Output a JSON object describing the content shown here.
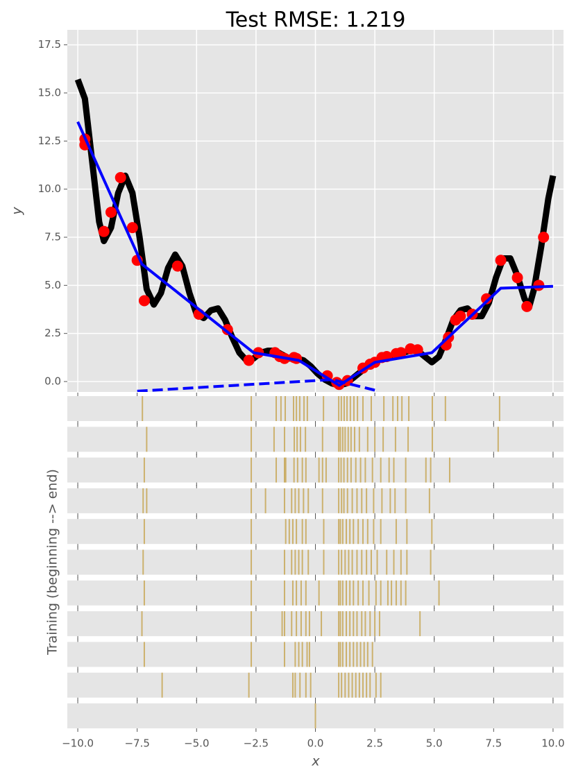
{
  "chart_data": [
    {
      "type": "line",
      "title": "Test RMSE: 1.219",
      "y_label": "y",
      "ylim": [
        -0.54,
        18.28
      ],
      "yticks": [
        {
          "value": 0,
          "label": "0.0"
        },
        2.5,
        {
          "value": 5,
          "label": "5.0"
        },
        7.5,
        {
          "value": 10,
          "label": "10.0"
        },
        12.5,
        {
          "value": 15,
          "label": "15.0"
        },
        17.5
      ],
      "grid": true,
      "series": [
        {
          "color": "#000000",
          "linestyle": "solid",
          "linewidth": 9,
          "x": [
            -10,
            -9.7,
            -9.4,
            -9.1,
            -8.9,
            -8.6,
            -8.3,
            -8.0,
            -7.7,
            -7.4,
            -7.1,
            -6.8,
            -6.5,
            -6.2,
            -5.9,
            -5.6,
            -5.3,
            -5.0,
            -4.7,
            -4.4,
            -4.1,
            -3.8,
            -3.5,
            -3.2,
            -2.9,
            -2.6,
            -2.3,
            -2.0,
            -1.7,
            -1.4,
            -1.1,
            -0.8,
            -0.5,
            -0.2,
            0.1,
            0.4,
            0.7,
            1.0,
            1.3,
            1.6,
            1.9,
            2.2,
            2.5,
            2.8,
            3.1,
            3.4,
            3.7,
            4.0,
            4.3,
            4.6,
            4.9,
            5.2,
            5.5,
            5.8,
            6.1,
            6.4,
            6.7,
            7.0,
            7.3,
            7.6,
            7.9,
            8.2,
            8.5,
            8.8,
            9.0,
            9.2,
            9.5,
            9.8,
            10.0
          ],
          "values": [
            15.7,
            14.7,
            11.5,
            8.3,
            7.3,
            8.0,
            9.8,
            10.7,
            9.8,
            7.5,
            4.8,
            4.0,
            4.6,
            5.9,
            6.6,
            6.0,
            4.6,
            3.5,
            3.3,
            3.7,
            3.8,
            3.2,
            2.3,
            1.5,
            1.1,
            1.2,
            1.5,
            1.6,
            1.6,
            1.4,
            1.2,
            1.2,
            1.1,
            0.8,
            0.4,
            0.1,
            -0.1,
            -0.2,
            -0.1,
            0.2,
            0.5,
            0.8,
            1.0,
            1.2,
            1.3,
            1.4,
            1.5,
            1.6,
            1.6,
            1.3,
            1.0,
            1.3,
            2.2,
            3.2,
            3.7,
            3.8,
            3.4,
            3.4,
            4.1,
            5.4,
            6.4,
            6.4,
            5.5,
            4.3,
            3.9,
            4.8,
            7.0,
            9.5,
            10.7
          ]
        },
        {
          "color": "#ff0000",
          "marker": "o",
          "x": [
            -9.7,
            -9.7,
            -8.9,
            -8.6,
            -8.2,
            -7.7,
            -7.5,
            -7.2,
            -5.8,
            -4.9,
            -3.7,
            -2.8,
            -2.4,
            -1.7,
            -1.5,
            -1.3,
            -0.9,
            -0.8,
            0.5,
            0.9,
            1.0,
            1.35,
            2.0,
            2.3,
            2.5,
            2.8,
            3.0,
            3.4,
            3.6,
            4.0,
            4.3,
            5.5,
            5.6,
            5.9,
            6.1,
            6.6,
            7.2,
            7.8,
            8.5,
            8.9,
            9.4,
            9.6
          ],
          "values": [
            12.6,
            12.3,
            7.8,
            8.8,
            10.6,
            8.0,
            6.3,
            4.2,
            6.0,
            3.5,
            2.7,
            1.1,
            1.5,
            1.5,
            1.3,
            1.2,
            1.25,
            1.2,
            0.3,
            -0.05,
            -0.15,
            0.05,
            0.7,
            0.9,
            1.0,
            1.25,
            1.3,
            1.45,
            1.5,
            1.7,
            1.65,
            1.9,
            2.3,
            3.2,
            3.4,
            3.5,
            4.3,
            6.3,
            5.4,
            3.9,
            5.0,
            7.5
          ]
        },
        {
          "color": "#0000ff",
          "linestyle": "solid",
          "linewidth": 4,
          "x": [
            -10,
            -7.3,
            -2.6,
            -0.7,
            1.0,
            2.5,
            4.9,
            7.8,
            10
          ],
          "values": [
            13.5,
            6.1,
            1.5,
            1.1,
            -0.2,
            1.0,
            1.5,
            4.85,
            4.95
          ]
        },
        {
          "color": "#0000ff",
          "linestyle": "dashed",
          "linewidth": 4,
          "x": [
            -7.5,
            0.7,
            2.5
          ],
          "values": [
            -0.5,
            0.1,
            -0.45
          ]
        }
      ]
    },
    {
      "type": "rug",
      "x_label": "x",
      "y_label": "Training (beginning --> end)",
      "xlim": [
        -10.44,
        10.44
      ],
      "xticks": [
        {
          "value": -10,
          "label": "−10.0"
        },
        {
          "value": -7.5,
          "label": "−7.5"
        },
        {
          "value": -5,
          "label": "−5.0"
        },
        {
          "value": -2.5,
          "label": "−2.5"
        },
        {
          "value": 0,
          "label": "0.0"
        },
        2.5,
        {
          "value": 5,
          "label": "5.0"
        },
        7.5,
        {
          "value": 10,
          "label": "10.0"
        }
      ],
      "color": "#b8860b",
      "rows": [
        [
          -7.28,
          -2.7,
          -1.65,
          -1.45,
          -1.27,
          -0.92,
          -0.8,
          -0.66,
          -0.48,
          -0.34,
          0.34,
          0.98,
          1.09,
          1.21,
          1.33,
          1.47,
          1.62,
          1.77,
          2.0,
          2.35,
          2.88,
          3.26,
          3.46,
          3.64,
          3.93,
          4.92,
          5.47,
          7.75
        ],
        [
          -7.1,
          -2.7,
          -1.74,
          -1.3,
          -0.89,
          -0.77,
          -0.63,
          -0.42,
          0.3,
          0.98,
          1.05,
          1.15,
          1.25,
          1.38,
          1.5,
          1.65,
          1.85,
          2.2,
          2.5,
          2.85,
          3.37,
          3.9,
          4.92,
          7.69
        ],
        [
          -7.2,
          -2.7,
          -1.65,
          -1.3,
          -1.25,
          -0.9,
          -0.75,
          -0.55,
          -0.4,
          0.15,
          0.3,
          0.45,
          0.98,
          1.08,
          1.2,
          1.35,
          1.5,
          1.7,
          1.9,
          2.1,
          2.4,
          2.75,
          3.1,
          3.3,
          3.8,
          4.65,
          4.85,
          5.65
        ],
        [
          -7.25,
          -7.1,
          -2.7,
          -2.1,
          -1.3,
          -1.0,
          -0.85,
          -0.7,
          -0.5,
          -0.3,
          0.3,
          0.98,
          1.1,
          1.2,
          1.35,
          1.55,
          1.75,
          1.95,
          2.15,
          2.45,
          2.8,
          3.15,
          3.35,
          3.8,
          4.8
        ],
        [
          -7.2,
          -2.7,
          -1.25,
          -1.1,
          -0.95,
          -0.8,
          -0.55,
          -0.4,
          0.35,
          0.98,
          1.05,
          1.15,
          1.3,
          1.45,
          1.6,
          1.8,
          2.0,
          2.2,
          2.45,
          2.75,
          3.4,
          3.85,
          4.9
        ],
        [
          -7.25,
          -2.7,
          -1.3,
          -1.0,
          -0.85,
          -0.7,
          -0.55,
          -0.3,
          0.35,
          0.98,
          1.1,
          1.25,
          1.4,
          1.55,
          1.75,
          1.95,
          2.15,
          2.35,
          2.6,
          3.0,
          3.3,
          3.6,
          3.85,
          4.85
        ],
        [
          -7.2,
          -2.7,
          -1.3,
          -0.95,
          -0.8,
          -0.6,
          -0.4,
          0.15,
          0.98,
          1.05,
          1.15,
          1.3,
          1.45,
          1.6,
          1.8,
          2.0,
          2.25,
          2.55,
          2.75,
          3.05,
          3.2,
          3.4,
          3.6,
          3.8,
          5.2
        ],
        [
          -7.3,
          -2.7,
          -1.4,
          -1.3,
          -1.0,
          -0.8,
          -0.6,
          -0.4,
          -0.25,
          0.25,
          0.98,
          1.05,
          1.15,
          1.3,
          1.45,
          1.6,
          1.75,
          1.95,
          2.1,
          2.3,
          2.5,
          2.7,
          4.4
        ],
        [
          -7.2,
          -2.7,
          -1.3,
          -0.85,
          -0.7,
          -0.55,
          -0.35,
          -0.25,
          0.98,
          1.05,
          1.15,
          1.3,
          1.45,
          1.6,
          1.75,
          1.9,
          2.05,
          2.2,
          2.4
        ],
        [
          -6.45,
          -2.8,
          -0.95,
          -0.85,
          -0.65,
          -0.4,
          -0.2,
          0.98,
          1.1,
          1.25,
          1.4,
          1.55,
          1.7,
          1.85,
          2.0,
          2.15,
          2.3,
          2.55,
          2.75
        ],
        [
          0.0
        ]
      ]
    }
  ]
}
